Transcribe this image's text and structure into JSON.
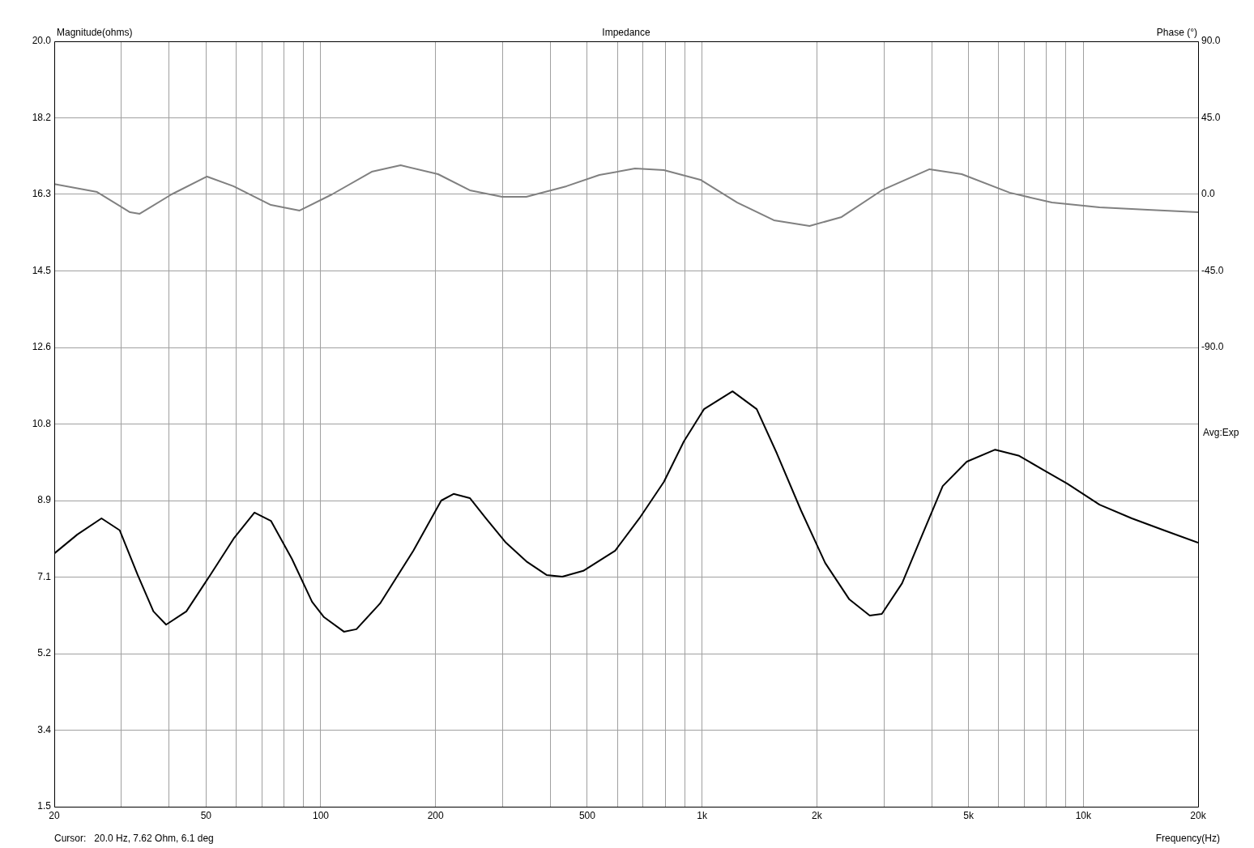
{
  "chart_data": {
    "type": "line",
    "title": "Impedance",
    "xlabel": "Frequency(Hz)",
    "ylabel": "Magnitude(ohms)",
    "y2label": "Phase (°)",
    "annotations": [
      "Cursor:   20.0 Hz, 7.62 Ohm, 6.1 deg",
      "Avg:Exp"
    ],
    "log": "x",
    "grid": true,
    "legend": false,
    "marker": "none",
    "line_style": "solid",
    "xlim": [
      20,
      20000
    ],
    "xticks": [
      20,
      {
        "value": 30,
        "label": null
      },
      {
        "value": 40,
        "label": null
      },
      50,
      {
        "value": 60,
        "label": null
      },
      {
        "value": 70,
        "label": null
      },
      {
        "value": 80,
        "label": null
      },
      {
        "value": 90,
        "label": null
      },
      100,
      200,
      {
        "value": 300,
        "label": null
      },
      {
        "value": 400,
        "label": null
      },
      500,
      {
        "value": 600,
        "label": null
      },
      {
        "value": 700,
        "label": null
      },
      {
        "value": 800,
        "label": null
      },
      {
        "value": 900,
        "label": null
      },
      {
        "value": 1000,
        "label": "1k"
      },
      {
        "value": 2000,
        "label": "2k"
      },
      {
        "value": 3000,
        "label": null
      },
      {
        "value": 4000,
        "label": null
      },
      {
        "value": 5000,
        "label": "5k"
      },
      {
        "value": 6000,
        "label": null
      },
      {
        "value": 7000,
        "label": null
      },
      {
        "value": 8000,
        "label": null
      },
      {
        "value": 9000,
        "label": null
      },
      {
        "value": 10000,
        "label": "10k"
      },
      {
        "value": 20000,
        "label": "20k"
      }
    ],
    "ylim": [
      1.5,
      20
    ],
    "yticks": [
      1.5,
      {
        "value": 3.35,
        "label": "3.4"
      },
      5.2,
      {
        "value": 7.05,
        "label": "7.1"
      },
      8.9,
      {
        "value": 10.75,
        "label": "10.8"
      },
      12.6,
      {
        "value": 14.45,
        "label": "14.5"
      },
      16.3,
      {
        "value": 18.15,
        "label": "18.2"
      },
      {
        "value": 20,
        "label": "20.0"
      }
    ],
    "y2lim": [
      -360,
      90
    ],
    "y2ticks": [
      {
        "value": -90,
        "label": "-90.0"
      },
      {
        "value": -45,
        "label": "-45.0"
      },
      {
        "value": 0,
        "label": "0.0"
      },
      {
        "value": 45,
        "label": "45.0"
      },
      {
        "value": 90,
        "label": "90.0"
      }
    ],
    "series": [
      {
        "color": "#000000",
        "x": [
          20,
          23,
          26.6,
          29.7,
          33.1,
          36.4,
          39.3,
          44.4,
          51.3,
          59.1,
          67,
          74,
          84,
          94.9,
          102,
          115,
          124,
          143,
          175,
          207,
          223,
          246,
          271,
          306,
          346,
          391,
          430,
          488,
          592,
          685,
          794,
          896,
          1012,
          1202,
          1391,
          1571,
          1818,
          2104,
          2434,
          2753,
          2961,
          3347,
          3784,
          4278,
          4947,
          5872,
          6788,
          7849,
          9075,
          11030,
          13400,
          16280,
          20000
        ],
        "values": [
          7.62,
          8.08,
          8.47,
          8.18,
          7.1,
          6.22,
          5.9,
          6.22,
          7.1,
          7.98,
          8.61,
          8.41,
          7.49,
          6.45,
          6.08,
          5.73,
          5.79,
          6.41,
          7.69,
          8.9,
          9.06,
          8.96,
          8.47,
          7.88,
          7.43,
          7.1,
          7.06,
          7.2,
          7.69,
          8.47,
          9.35,
          10.33,
          11.11,
          11.54,
          11.11,
          10.04,
          8.66,
          7.39,
          6.51,
          6.12,
          6.16,
          6.9,
          8.08,
          9.25,
          9.84,
          10.13,
          9.98,
          9.64,
          9.31,
          8.8,
          8.47,
          8.18,
          7.88
        ]
      },
      {
        "color": "#808080",
        "axis": "y2",
        "x": [
          20,
          25.9,
          31.6,
          33.5,
          40.6,
          50.3,
          59,
          74,
          88,
          107,
          136,
          162,
          203,
          246,
          299,
          346,
          441,
          538,
          667,
          794,
          990,
          1237,
          1543,
          1914,
          2322,
          2961,
          3951,
          4798,
          6409,
          8273,
          11030,
          14750,
          20000
        ],
        "values": [
          6.1,
          1.4,
          -10.5,
          -11.4,
          0,
          10.5,
          4.8,
          -6.2,
          -9.5,
          0,
          13.3,
          17.1,
          11.9,
          2.4,
          -1.4,
          -1.4,
          4.8,
          11.4,
          15.2,
          14.3,
          8.6,
          -4.8,
          -15.2,
          -18.6,
          -13.3,
          2.4,
          14.8,
          11.9,
          1,
          -4.8,
          -7.6,
          -9,
          -10.5
        ]
      }
    ]
  }
}
